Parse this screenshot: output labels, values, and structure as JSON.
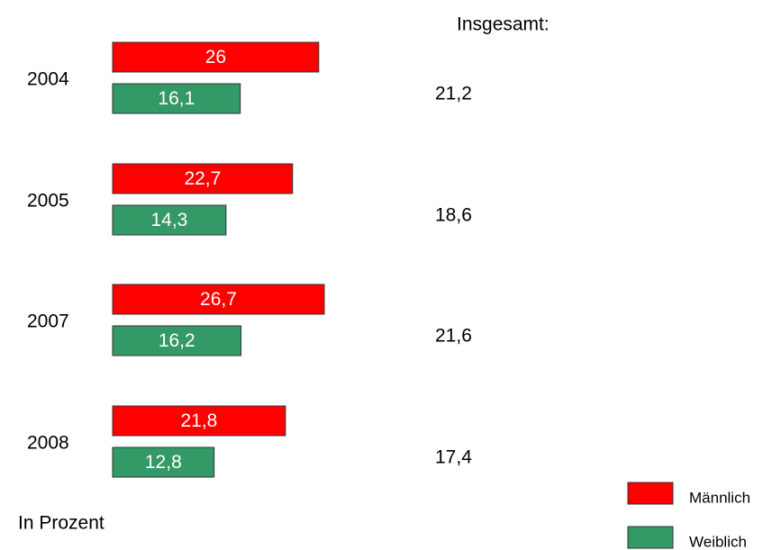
{
  "chart_data": {
    "type": "hbar",
    "categories": [
      "2004",
      "2005",
      "2007",
      "2008"
    ],
    "series": [
      {
        "name": "Männlich",
        "color": "#ff0000",
        "values": [
          26,
          22.7,
          26.7,
          21.8
        ],
        "value_labels": [
          "26",
          "22,7",
          "26,7",
          "21,8"
        ]
      },
      {
        "name": "Weiblich",
        "color": "#339966",
        "values": [
          16.1,
          14.3,
          16.2,
          12.8
        ],
        "value_labels": [
          "16,1",
          "14,3",
          "16,2",
          "12,8"
        ]
      }
    ],
    "totals": {
      "title": "Insgesamt:",
      "values": [
        21.2,
        18.6,
        21.6,
        17.4
      ],
      "value_labels": [
        "21,2",
        "18,6",
        "21,6",
        "17,4"
      ]
    },
    "note": "In Prozent"
  }
}
